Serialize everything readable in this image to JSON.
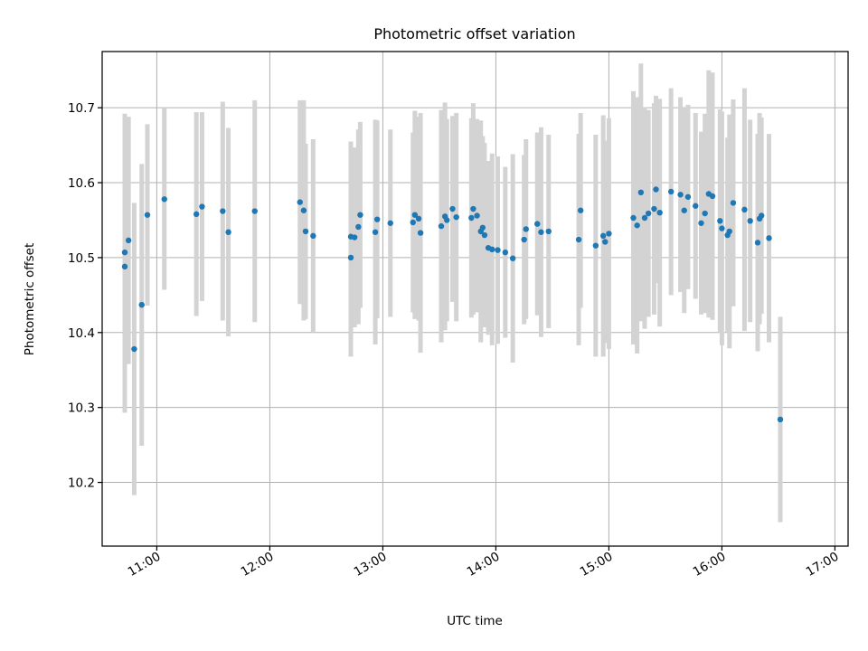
{
  "chart_data": {
    "type": "scatter",
    "title": "Photometric offset variation",
    "xlabel": "UTC time",
    "ylabel": "Photometric offset",
    "xlim": [
      "10:31",
      "17:07"
    ],
    "ylim": [
      10.115,
      10.775
    ],
    "grid": true,
    "x_ticks": [
      "11:00",
      "12:00",
      "13:00",
      "14:00",
      "15:00",
      "16:00",
      "17:00"
    ],
    "y_ticks": [
      "10.2",
      "10.3",
      "10.4",
      "10.5",
      "10.6",
      "10.7"
    ],
    "colors": {
      "point": "#1f77b4",
      "error_bar": "#d3d3d3",
      "grid": "#b0b0b0"
    },
    "series": [
      {
        "x": [
          "10:43",
          "10:43",
          "10:45",
          "10:48",
          "10:52",
          "10:55",
          "11:04",
          "11:21",
          "11:24",
          "11:35",
          "11:38",
          "11:52",
          "12:16",
          "12:18",
          "12:19",
          "12:23",
          "12:43",
          "12:43",
          "12:45",
          "12:47",
          "12:48",
          "12:56",
          "12:57",
          "13:04",
          "13:16",
          "13:17",
          "13:19",
          "13:20",
          "13:31",
          "13:33",
          "13:34",
          "13:37",
          "13:39",
          "13:47",
          "13:48",
          "13:50",
          "13:52",
          "13:53",
          "13:54",
          "13:56",
          "13:58",
          "14:01",
          "14:05",
          "14:09",
          "14:15",
          "14:16",
          "14:22",
          "14:24",
          "14:28",
          "14:44",
          "14:45",
          "14:53",
          "14:57",
          "14:58",
          "15:00",
          "15:13",
          "15:15",
          "15:17",
          "15:19",
          "15:21",
          "15:24",
          "15:25",
          "15:27",
          "15:33",
          "15:38",
          "15:40",
          "15:42",
          "15:46",
          "15:49",
          "15:51",
          "15:53",
          "15:55",
          "15:59",
          "16:00",
          "16:03",
          "16:04",
          "16:06",
          "16:12",
          "16:15",
          "16:19",
          "16:20",
          "16:21",
          "16:25",
          "16:31"
        ],
        "y": [
          10.488,
          10.507,
          10.523,
          10.378,
          10.437,
          10.557,
          10.578,
          10.558,
          10.568,
          10.562,
          10.534,
          10.562,
          10.574,
          10.563,
          10.535,
          10.529,
          10.5,
          10.528,
          10.527,
          10.541,
          10.557,
          10.534,
          10.551,
          10.546,
          10.547,
          10.557,
          10.552,
          10.533,
          10.542,
          10.555,
          10.55,
          10.565,
          10.554,
          10.553,
          10.565,
          10.556,
          10.535,
          10.54,
          10.53,
          10.513,
          10.511,
          10.51,
          10.507,
          10.499,
          10.524,
          10.538,
          10.545,
          10.534,
          10.535,
          10.524,
          10.563,
          10.516,
          10.529,
          10.521,
          10.532,
          10.553,
          10.543,
          10.587,
          10.553,
          10.559,
          10.565,
          10.591,
          10.56,
          10.588,
          10.584,
          10.563,
          10.581,
          10.569,
          10.546,
          10.559,
          10.585,
          10.582,
          10.549,
          10.539,
          10.53,
          10.535,
          10.573,
          10.564,
          10.549,
          10.52,
          10.552,
          10.556,
          10.526,
          10.284
        ],
        "err": [
          0.195,
          0.185,
          0.165,
          0.195,
          0.188,
          0.121,
          0.121,
          0.136,
          0.126,
          0.146,
          0.139,
          0.148,
          0.136,
          0.147,
          0.117,
          0.129,
          0.132,
          0.127,
          0.12,
          0.13,
          0.124,
          0.15,
          0.132,
          0.125,
          0.12,
          0.139,
          0.136,
          0.16,
          0.155,
          0.152,
          0.135,
          0.124,
          0.139,
          0.133,
          0.141,
          0.129,
          0.148,
          0.122,
          0.123,
          0.116,
          0.128,
          0.125,
          0.114,
          0.139,
          0.113,
          0.12,
          0.122,
          0.14,
          0.129,
          0.141,
          0.13,
          0.148,
          0.161,
          0.135,
          0.154,
          0.169,
          0.171,
          0.172,
          0.148,
          0.138,
          0.141,
          0.125,
          0.152,
          0.138,
          0.13,
          0.137,
          0.123,
          0.124,
          0.122,
          0.133,
          0.165,
          0.165,
          0.149,
          0.156,
          0.13,
          0.156,
          0.138,
          0.162,
          0.135,
          0.145,
          0.141,
          0.131,
          0.139,
          0.137
        ]
      }
    ]
  }
}
